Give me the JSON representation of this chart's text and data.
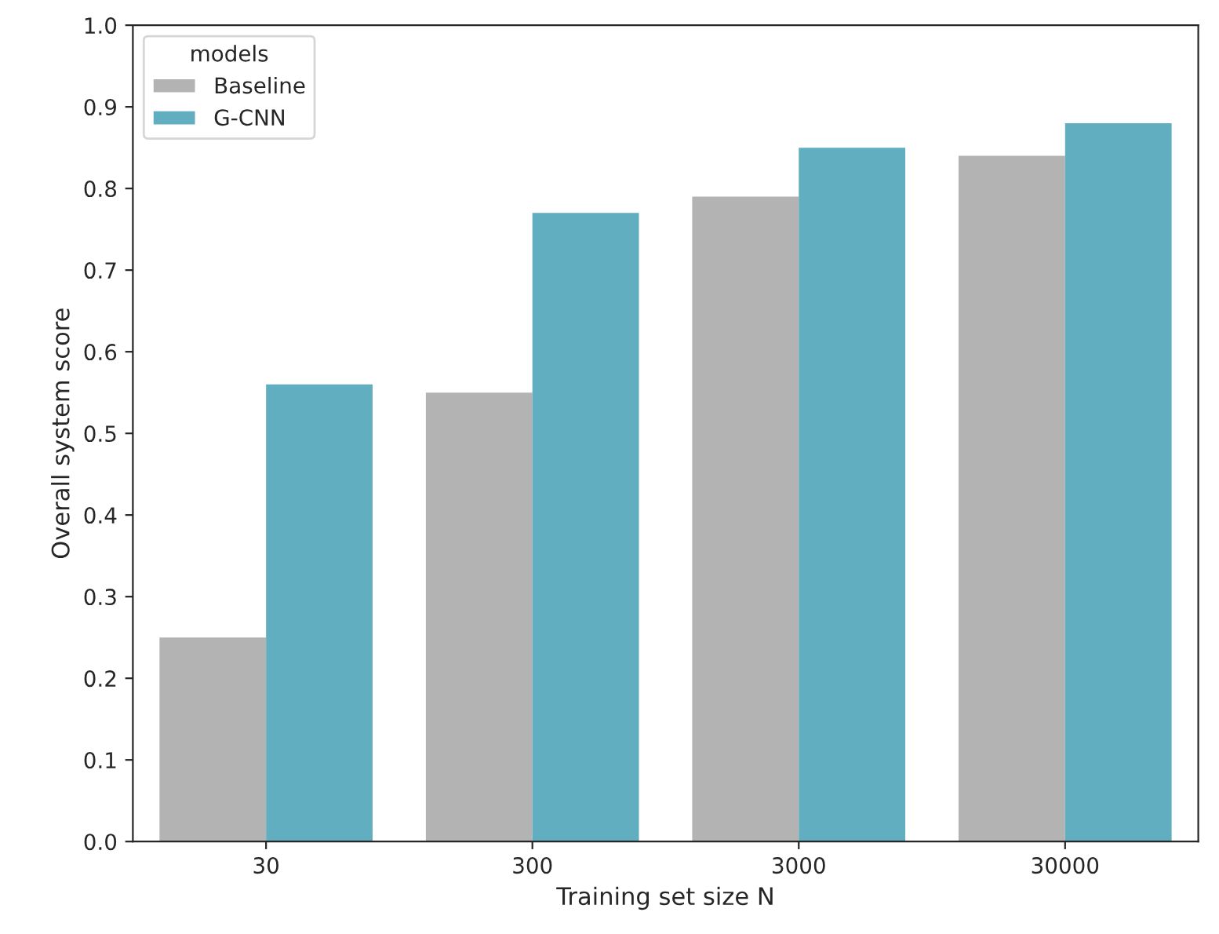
{
  "chart_data": {
    "type": "bar",
    "xlabel": "Training set size N",
    "ylabel": "Overall system score",
    "categories": [
      "30",
      "300",
      "3000",
      "30000"
    ],
    "series": [
      {
        "name": "Baseline",
        "color": "#b3b3b3",
        "values": [
          0.25,
          0.55,
          0.79,
          0.84
        ]
      },
      {
        "name": "G-CNN",
        "color": "#60aebf",
        "values": [
          0.56,
          0.77,
          0.85,
          0.88
        ]
      }
    ],
    "legend_title": "models",
    "legend": "top left",
    "ylim": [
      0,
      1.0
    ],
    "yticks": [
      {
        "value": 0,
        "label": "0.0"
      },
      0.1,
      0.2,
      0.3,
      0.4,
      0.5,
      0.6,
      0.7,
      0.8,
      0.9,
      {
        "value": 1.0,
        "label": "1.0"
      }
    ]
  }
}
